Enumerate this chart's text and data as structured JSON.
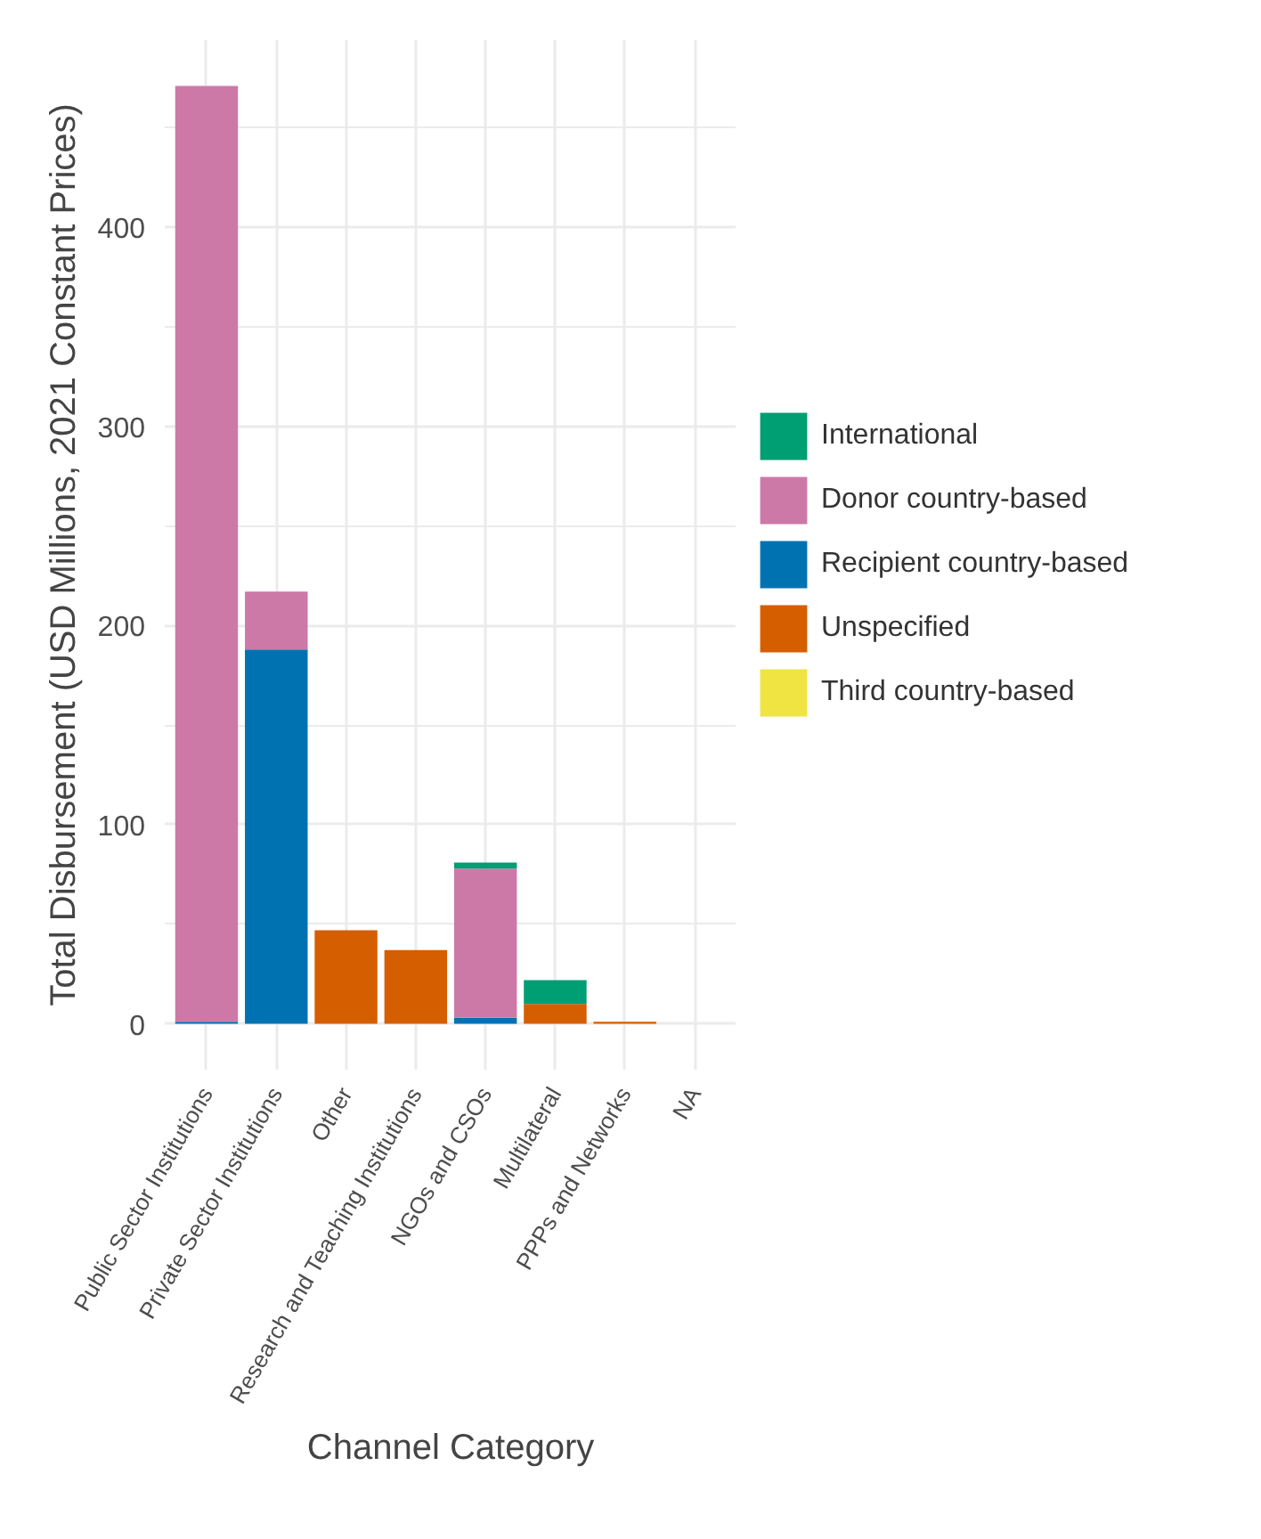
{
  "chart_data": {
    "type": "bar",
    "stacked": true,
    "xlabel": "Channel Category",
    "ylabel": "Total Disbursement (USD Millions, 2021 Constant Prices)",
    "categories": [
      "Public Sector Institutions",
      "Private Sector Institutions",
      "Other",
      "Research and Teaching Institutions",
      "NGOs and CSOs",
      "Multilateral",
      "PPPs and Networks",
      "NA"
    ],
    "series": [
      {
        "name": "Third country-based",
        "color": "#f0e442",
        "values": [
          null,
          null,
          null,
          null,
          null,
          null,
          null,
          null
        ]
      },
      {
        "name": "Unspecified",
        "color": "#d55e00",
        "values": [
          null,
          null,
          47,
          37,
          null,
          10,
          1,
          null
        ]
      },
      {
        "name": "Recipient country-based",
        "color": "#0072b2",
        "values": [
          1,
          188,
          null,
          null,
          3,
          null,
          null,
          null
        ]
      },
      {
        "name": "Donor country-based",
        "color": "#cc79a7",
        "values": [
          470,
          29,
          null,
          null,
          75,
          null,
          null,
          null
        ]
      },
      {
        "name": "International",
        "color": "#009e73",
        "values": [
          null,
          null,
          null,
          null,
          3,
          12,
          null,
          null
        ]
      }
    ],
    "ylim": [
      -23,
      494
    ],
    "yticks": [
      0,
      100,
      200,
      300,
      400
    ],
    "grid": true,
    "legend": "right"
  }
}
